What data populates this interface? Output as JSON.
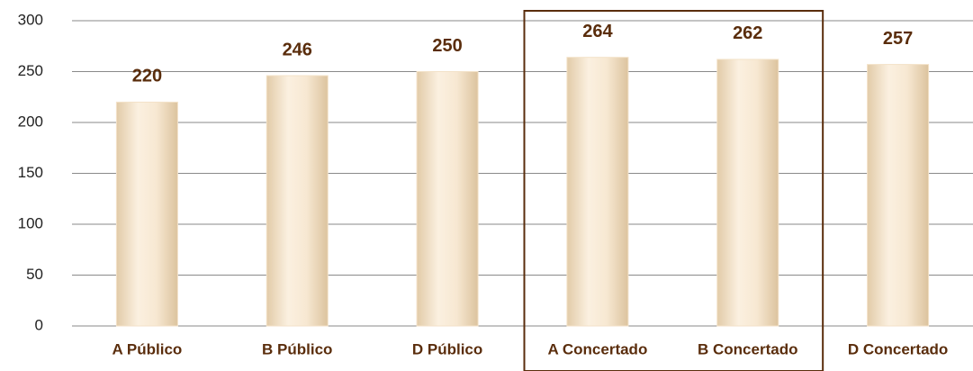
{
  "chart_data": {
    "type": "bar",
    "categories": [
      "A Público",
      "B Público",
      "D Público",
      "A Concertado",
      "B Concertado",
      "D Concertado"
    ],
    "values": [
      220,
      246,
      250,
      264,
      262,
      257
    ],
    "color": "#f3e2c8",
    "ylim": [
      0,
      300
    ],
    "yticks": [
      0,
      50,
      100,
      150,
      200,
      250,
      300
    ],
    "grid": true,
    "data_labels": true
  }
}
